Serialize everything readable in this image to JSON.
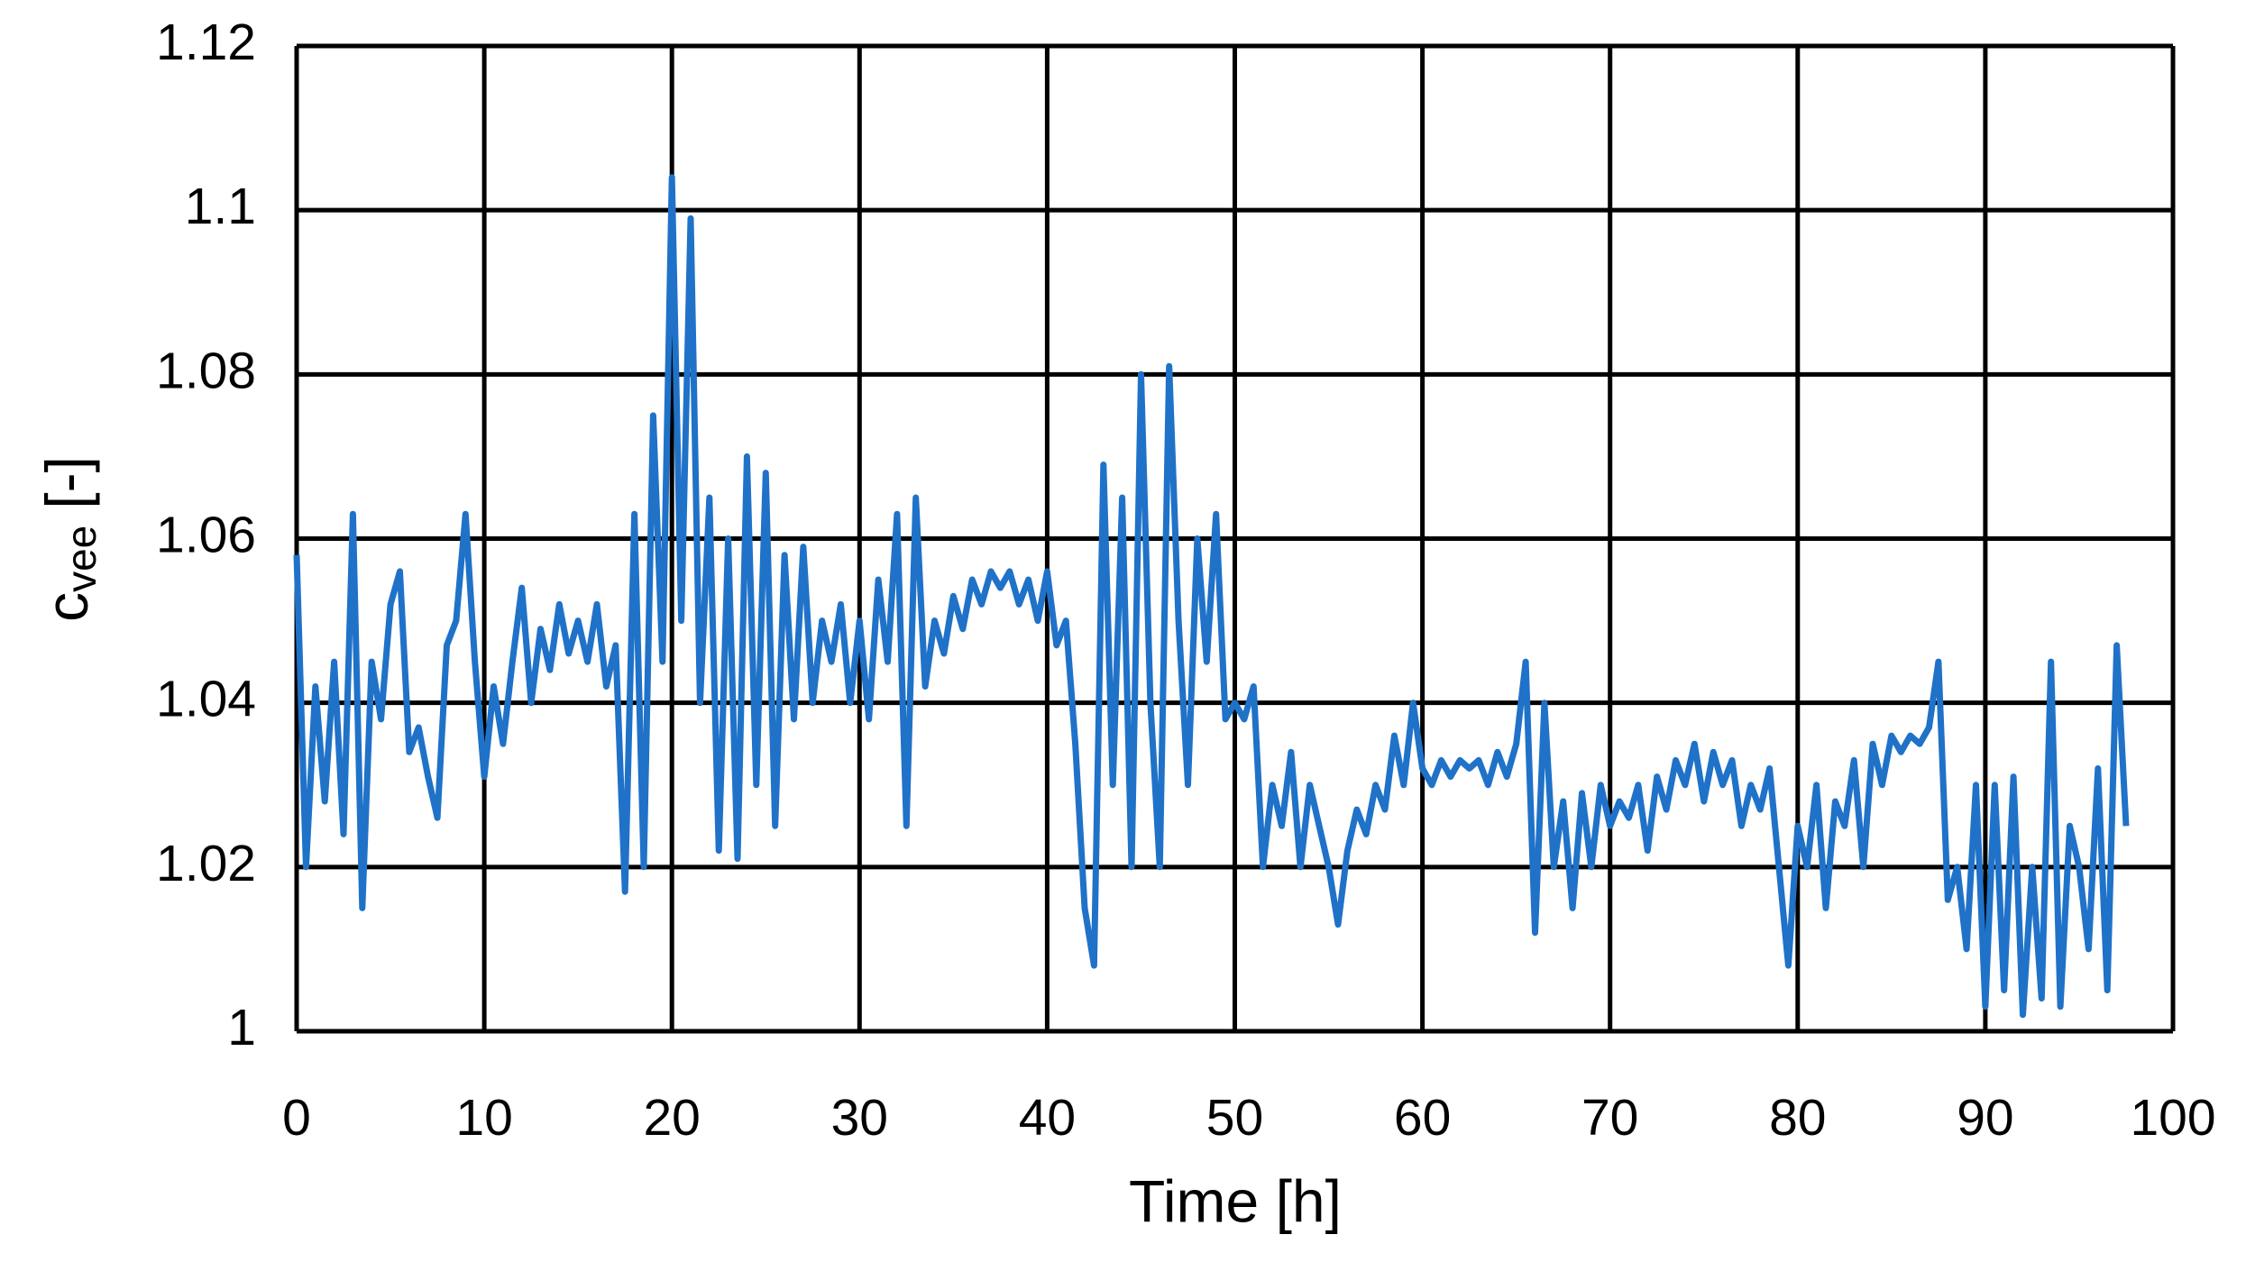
{
  "chart_data": {
    "type": "line",
    "x_label": "Time [h]",
    "y_label": "c",
    "y_label_sub": "vee",
    "y_label_unit": "[-]",
    "color": "#1f72c8",
    "grid": true,
    "xlim": [
      0,
      100
    ],
    "xticks": [
      0,
      10,
      20,
      30,
      40,
      50,
      60,
      70,
      80,
      90,
      100
    ],
    "ylim": [
      1,
      1.12
    ],
    "yticks": [
      1,
      1.02,
      1.04,
      1.06,
      1.08,
      1.1,
      1.12
    ],
    "x": [
      0,
      0.5,
      1,
      1.5,
      2,
      2.5,
      3,
      3.5,
      4,
      4.5,
      5,
      5.5,
      6,
      6.5,
      7,
      7.5,
      8,
      8.5,
      9,
      9.5,
      10,
      10.5,
      11,
      11.5,
      12,
      12.5,
      13,
      13.5,
      14,
      14.5,
      15,
      15.5,
      16,
      16.5,
      17,
      17.5,
      18,
      18.5,
      19,
      19.5,
      20,
      20.5,
      21,
      21.5,
      22,
      22.5,
      23,
      23.5,
      24,
      24.5,
      25,
      25.5,
      26,
      26.5,
      27,
      27.5,
      28,
      28.5,
      29,
      29.5,
      30,
      30.5,
      31,
      31.5,
      32,
      32.5,
      33,
      33.5,
      34,
      34.5,
      35,
      35.5,
      36,
      36.5,
      37,
      37.5,
      38,
      38.5,
      39,
      39.5,
      40,
      40.5,
      41,
      41.5,
      42,
      42.5,
      43,
      43.5,
      44,
      44.5,
      45,
      45.5,
      46,
      46.5,
      47,
      47.5,
      48,
      48.5,
      49,
      49.5,
      50,
      50.5,
      51,
      51.5,
      52,
      52.5,
      53,
      53.5,
      54,
      54.5,
      55,
      55.5,
      56,
      56.5,
      57,
      57.5,
      58,
      58.5,
      59,
      59.5,
      60,
      60.5,
      61,
      61.5,
      62,
      62.5,
      63,
      63.5,
      64,
      64.5,
      65,
      65.5,
      66,
      66.5,
      67,
      67.5,
      68,
      68.5,
      69,
      69.5,
      70,
      70.5,
      71,
      71.5,
      72,
      72.5,
      73,
      73.5,
      74,
      74.5,
      75,
      75.5,
      76,
      76.5,
      77,
      77.5,
      78,
      78.5,
      79,
      79.5,
      80,
      80.5,
      81,
      81.5,
      82,
      82.5,
      83,
      83.5,
      84,
      84.5,
      85,
      85.5,
      86,
      86.5,
      87,
      87.5,
      88,
      88.5,
      89,
      89.5,
      90,
      90.5,
      91,
      91.5,
      92,
      92.5,
      93,
      93.5,
      94,
      94.5,
      95,
      95.5,
      96,
      96.5,
      97,
      97.5
    ],
    "values": [
      1.058,
      1.02,
      1.042,
      1.028,
      1.045,
      1.024,
      1.063,
      1.015,
      1.045,
      1.038,
      1.052,
      1.056,
      1.034,
      1.037,
      1.031,
      1.026,
      1.047,
      1.05,
      1.063,
      1.045,
      1.031,
      1.042,
      1.035,
      1.045,
      1.054,
      1.04,
      1.049,
      1.044,
      1.052,
      1.046,
      1.05,
      1.045,
      1.052,
      1.042,
      1.047,
      1.017,
      1.063,
      1.02,
      1.075,
      1.045,
      1.104,
      1.05,
      1.099,
      1.04,
      1.065,
      1.022,
      1.06,
      1.021,
      1.07,
      1.03,
      1.068,
      1.025,
      1.058,
      1.038,
      1.059,
      1.04,
      1.05,
      1.045,
      1.052,
      1.04,
      1.05,
      1.038,
      1.055,
      1.045,
      1.063,
      1.025,
      1.065,
      1.042,
      1.05,
      1.046,
      1.053,
      1.049,
      1.055,
      1.052,
      1.056,
      1.054,
      1.056,
      1.052,
      1.055,
      1.05,
      1.056,
      1.047,
      1.05,
      1.035,
      1.015,
      1.008,
      1.069,
      1.03,
      1.065,
      1.02,
      1.08,
      1.04,
      1.02,
      1.081,
      1.05,
      1.03,
      1.06,
      1.045,
      1.063,
      1.038,
      1.04,
      1.038,
      1.042,
      1.02,
      1.03,
      1.025,
      1.034,
      1.02,
      1.03,
      1.025,
      1.02,
      1.013,
      1.022,
      1.027,
      1.024,
      1.03,
      1.027,
      1.036,
      1.03,
      1.04,
      1.032,
      1.03,
      1.033,
      1.031,
      1.033,
      1.032,
      1.033,
      1.03,
      1.034,
      1.031,
      1.035,
      1.045,
      1.012,
      1.04,
      1.02,
      1.028,
      1.015,
      1.029,
      1.02,
      1.03,
      1.025,
      1.028,
      1.026,
      1.03,
      1.022,
      1.031,
      1.027,
      1.033,
      1.03,
      1.035,
      1.028,
      1.034,
      1.03,
      1.033,
      1.025,
      1.03,
      1.027,
      1.032,
      1.02,
      1.008,
      1.025,
      1.02,
      1.03,
      1.015,
      1.028,
      1.025,
      1.033,
      1.02,
      1.035,
      1.03,
      1.036,
      1.034,
      1.036,
      1.035,
      1.037,
      1.045,
      1.016,
      1.02,
      1.01,
      1.03,
      1.003,
      1.03,
      1.005,
      1.031,
      1.002,
      1.02,
      1.004,
      1.045,
      1.003,
      1.025,
      1.02,
      1.01,
      1.032,
      1.005,
      1.047,
      1.025
    ]
  }
}
